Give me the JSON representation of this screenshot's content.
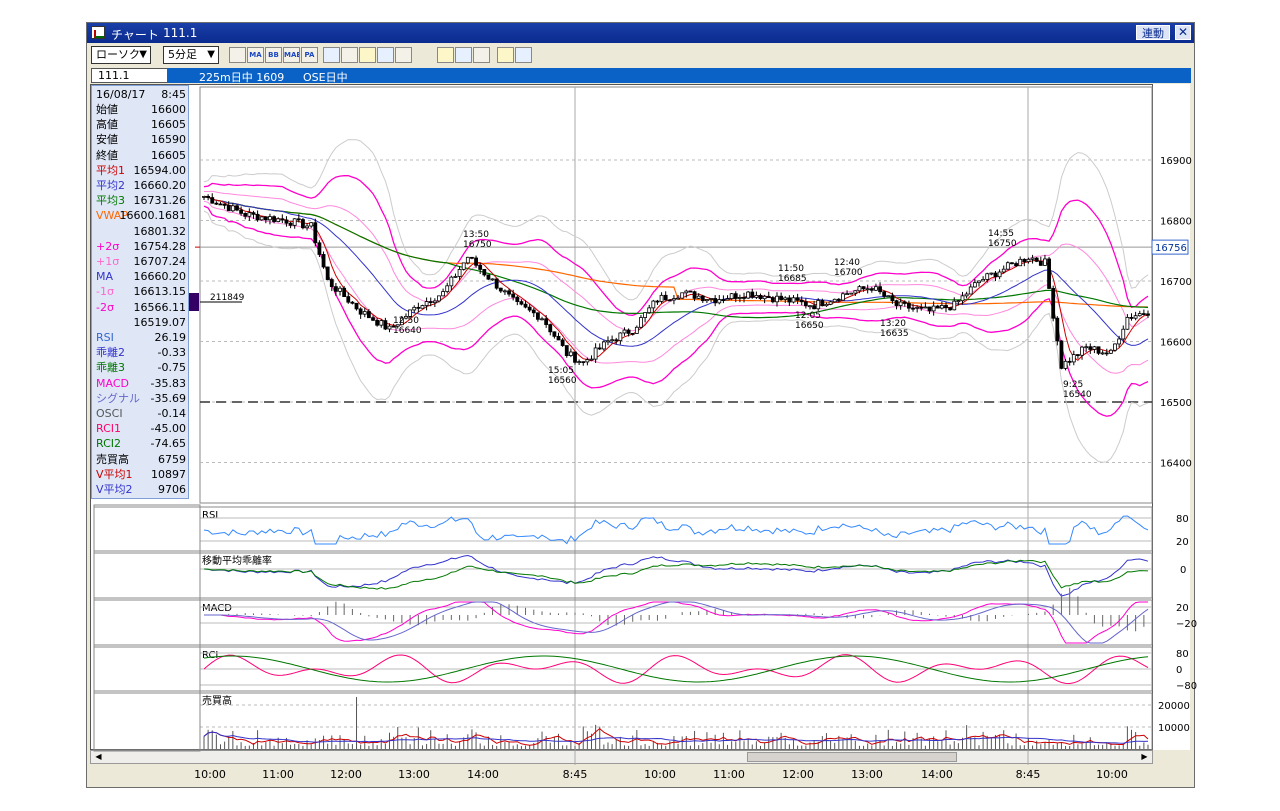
{
  "window": {
    "icon": "chart-window-icon",
    "title": "チャート",
    "code": "111.1",
    "link_label": "連動",
    "close_label": "✕"
  },
  "toolbar": {
    "chart_type": "ローソク",
    "period": "5分足",
    "tools": [
      {
        "name": "candle-icon",
        "label": ""
      },
      {
        "name": "ma-icon",
        "label": "MA"
      },
      {
        "name": "bb-icon",
        "label": "BB"
      },
      {
        "name": "mae-icon",
        "label": "MAE"
      },
      {
        "name": "pa-icon",
        "label": "PA"
      },
      {
        "name": "line-icon",
        "label": ""
      },
      {
        "name": "compare-icon",
        "label": ""
      },
      {
        "name": "cross-icon",
        "label": ""
      },
      {
        "name": "zoom-icon",
        "label": ""
      },
      {
        "name": "depth-icon",
        "label": ""
      },
      {
        "name": "pencil-icon",
        "label": ""
      },
      {
        "name": "cursor-icon",
        "label": ""
      },
      {
        "name": "eraser-icon",
        "label": ""
      },
      {
        "name": "settings-icon",
        "label": ""
      },
      {
        "name": "clear-icon",
        "label": ""
      }
    ]
  },
  "header": {
    "code": "111.1",
    "instrument": "225m日中 1609",
    "session": "OSE日中"
  },
  "info_panel": {
    "date": "16/08/17",
    "time": "8:45",
    "rows": [
      {
        "label": "始値",
        "value": "16600",
        "color": "#000000"
      },
      {
        "label": "高値",
        "value": "16605",
        "color": "#000000"
      },
      {
        "label": "安値",
        "value": "16590",
        "color": "#000000"
      },
      {
        "label": "終値",
        "value": "16605",
        "color": "#000000"
      },
      {
        "label": "平均1",
        "value": "16594.00",
        "color": "#cc0000"
      },
      {
        "label": "平均2",
        "value": "16660.20",
        "color": "#3333cc"
      },
      {
        "label": "平均3",
        "value": "16731.26",
        "color": "#007700"
      },
      {
        "label": "VWAP",
        "value": "16600.1681",
        "color": "#ff6600"
      },
      {
        "label": "",
        "value": "16801.32",
        "color": "#000000"
      },
      {
        "label": "+2σ",
        "value": "16754.28",
        "color": "#ff00cc"
      },
      {
        "label": "+1σ",
        "value": "16707.24",
        "color": "#ff66cc"
      },
      {
        "label": "MA",
        "value": "16660.20",
        "color": "#3333cc"
      },
      {
        "label": "-1σ",
        "value": "16613.15",
        "color": "#ff66cc"
      },
      {
        "label": "-2σ",
        "value": "16566.11",
        "color": "#ff00cc"
      },
      {
        "label": "",
        "value": "16519.07",
        "color": "#000000"
      },
      {
        "label": "RSI",
        "value": "26.19",
        "color": "#3366cc"
      },
      {
        "label": "乖離2",
        "value": "-0.33",
        "color": "#3333cc"
      },
      {
        "label": "乖離3",
        "value": "-0.75",
        "color": "#007700"
      },
      {
        "label": "MACD",
        "value": "-35.83",
        "color": "#ff00cc"
      },
      {
        "label": "シグナル",
        "value": "-35.69",
        "color": "#6666cc"
      },
      {
        "label": "OSCI",
        "value": "-0.14",
        "color": "#555555"
      },
      {
        "label": "RCI1",
        "value": "-45.00",
        "color": "#ff0066"
      },
      {
        "label": "RCI2",
        "value": "-74.65",
        "color": "#007700"
      },
      {
        "label": "売買高",
        "value": "6759",
        "color": "#000000"
      },
      {
        "label": "V平均1",
        "value": "10897",
        "color": "#cc0000"
      },
      {
        "label": "V平均2",
        "value": "9706",
        "color": "#3333cc"
      }
    ]
  },
  "price_axis": {
    "ticks": [
      "16900",
      "16800",
      "16700",
      "16600",
      "16500",
      "16400"
    ],
    "current": "16756"
  },
  "annotations": [
    {
      "time": "13:50",
      "price": "16750"
    },
    {
      "time": "12:50",
      "price": "16640"
    },
    {
      "time": "15:05",
      "price": "16560"
    },
    {
      "time": "11:50",
      "price": "16685"
    },
    {
      "time": "12:05",
      "price": "16650"
    },
    {
      "time": "12:40",
      "price": "16700"
    },
    {
      "time": "13:20",
      "price": "16635"
    },
    {
      "time": "14:55",
      "price": "16750"
    },
    {
      "time": "9:25",
      "price": "16540"
    }
  ],
  "volume_marker": "211849",
  "subpanels": [
    {
      "name": "rsi-panel",
      "title": "RSI",
      "ticks": [
        "80",
        "20"
      ]
    },
    {
      "name": "deviation-panel",
      "title": "移動平均乖離率",
      "ticks": [
        "0"
      ]
    },
    {
      "name": "macd-panel",
      "title": "MACD",
      "ticks": [
        "20",
        "−20"
      ]
    },
    {
      "name": "rci-panel",
      "title": "RCI",
      "ticks": [
        "80",
        "0",
        "−80"
      ]
    },
    {
      "name": "volume-panel",
      "title": "売買高",
      "ticks": [
        "20000",
        "10000"
      ]
    }
  ],
  "time_axis": [
    "10:00",
    "11:00",
    "12:00",
    "13:00",
    "14:00",
    "8:45",
    "10:00",
    "11:00",
    "12:00",
    "13:00",
    "14:00",
    "8:45",
    "10:00"
  ],
  "colors": {
    "title_bar": "#0a2a8e",
    "header_bar": "#0b62c6",
    "info_bg": "#dfe7f7",
    "ma_short": "#cc0000",
    "ma_mid": "#3333cc",
    "ma_long": "#007700",
    "vwap": "#ff6600",
    "bollinger": "#ff00cc"
  }
}
